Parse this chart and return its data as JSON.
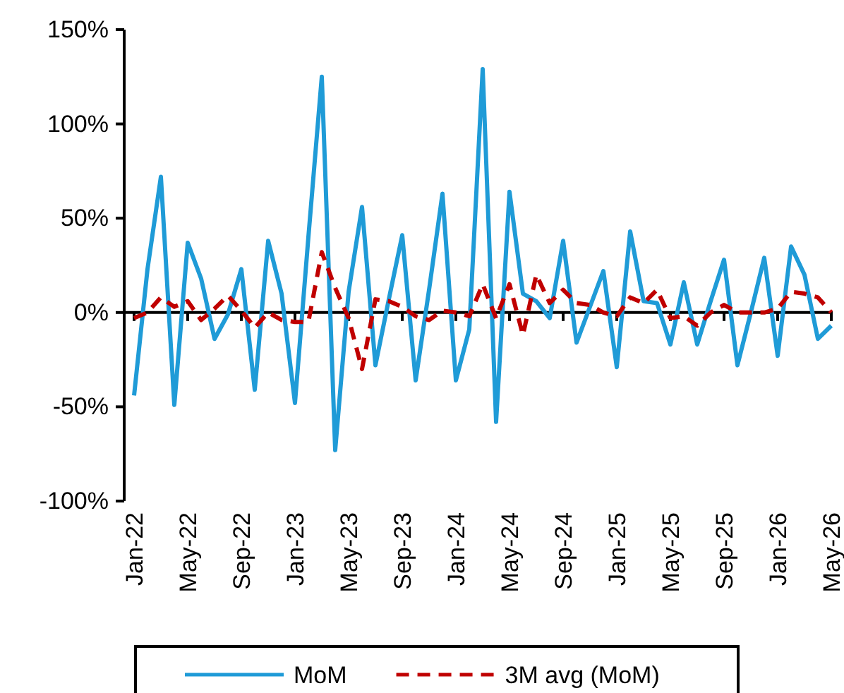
{
  "chart_data": {
    "type": "line",
    "categories": [
      "Jan-22",
      null,
      null,
      null,
      "May-22",
      null,
      null,
      null,
      "Sep-22",
      null,
      null,
      null,
      "Jan-23",
      null,
      null,
      null,
      "May-23",
      null,
      null,
      null,
      "Sep-23",
      null,
      null,
      null,
      "Jan-24",
      null,
      null,
      null,
      "May-24",
      null,
      null,
      null,
      "Sep-24",
      null,
      null,
      null,
      "Jan-25",
      null,
      null,
      null,
      "May-25",
      null,
      null,
      null,
      "Sep-25",
      null,
      null,
      null,
      "Jan-26",
      null,
      null,
      null,
      "May-26"
    ],
    "series": [
      {
        "name": "MoM",
        "color": "#1f9bd7",
        "line_style": "solid",
        "values": [
          -44,
          23,
          72,
          -49,
          37,
          18,
          -14,
          -1,
          23,
          -41,
          38,
          10,
          -48,
          40,
          125,
          -73,
          11,
          56,
          -28,
          7,
          41,
          -36,
          12,
          63,
          -36,
          -9,
          129,
          -58,
          64,
          10,
          6,
          -3,
          38,
          -16,
          3,
          22,
          -29,
          43,
          6,
          5,
          -17,
          16,
          -17,
          6,
          28,
          -28,
          0,
          29,
          -23,
          35,
          20,
          -14,
          -7
        ]
      },
      {
        "name": "3M avg (MoM)",
        "color": "#c00000",
        "line_style": "dashed",
        "values": [
          -3,
          0,
          8,
          3,
          6,
          -4,
          2,
          9,
          1,
          -8,
          0,
          -4,
          -5,
          -5,
          32,
          13,
          -3,
          -30,
          7,
          6,
          3,
          -2,
          -4,
          1,
          0,
          -2,
          15,
          -3,
          15,
          -12,
          20,
          5,
          12,
          5,
          4,
          0,
          -2,
          8,
          5,
          12,
          -3,
          -2,
          -7,
          0,
          4,
          0,
          0,
          0,
          2,
          11,
          10,
          8,
          0
        ]
      }
    ],
    "ylim": [
      -100,
      150
    ],
    "yticks": [
      {
        "value": -100,
        "label": "-100%"
      },
      {
        "value": -50,
        "label": "-50%"
      },
      {
        "value": 0,
        "label": "0%"
      },
      {
        "value": 50,
        "label": "50%"
      },
      {
        "value": 100,
        "label": "100%"
      },
      {
        "value": 150,
        "label": "150%"
      }
    ],
    "legend": "bottom",
    "marker": "none"
  }
}
